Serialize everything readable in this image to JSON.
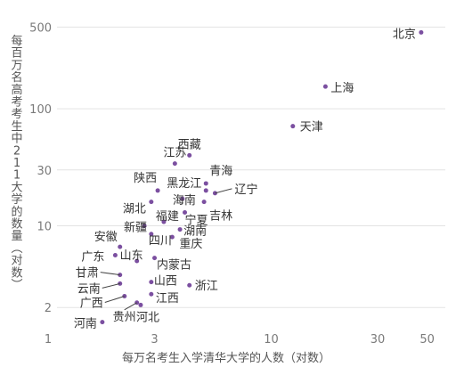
{
  "chart_data": {
    "type": "scatter",
    "title": "",
    "xlabel": "每万名考生入学清华大学的人数（对数）",
    "ylabel": "每百万名高考考生中211大学的数量（对数）",
    "x_scale": "log",
    "y_scale": "log",
    "xlim": [
      1,
      55
    ],
    "ylim": [
      1.25,
      600
    ],
    "x_ticks": [
      1,
      3,
      10,
      30,
      50
    ],
    "y_ticks": [
      2,
      10,
      30,
      100,
      500
    ],
    "grid": "horizontal",
    "marker_color": "#7b4fa0",
    "points": [
      {
        "name": "北京",
        "x": 47,
        "y": 450
      },
      {
        "name": "上海",
        "x": 17.5,
        "y": 155
      },
      {
        "name": "天津",
        "x": 12.5,
        "y": 71
      },
      {
        "name": "西藏",
        "x": 4.3,
        "y": 40
      },
      {
        "name": "江苏",
        "x": 3.7,
        "y": 34
      },
      {
        "name": "青海",
        "x": 5.1,
        "y": 23
      },
      {
        "name": "辽宁",
        "x": 5.6,
        "y": 19
      },
      {
        "name": "黑龙江",
        "x": 5.1,
        "y": 20
      },
      {
        "name": "吉林",
        "x": 5.0,
        "y": 16
      },
      {
        "name": "陕西",
        "x": 3.1,
        "y": 20
      },
      {
        "name": "海南",
        "x": 4.0,
        "y": 17
      },
      {
        "name": "湖北",
        "x": 2.9,
        "y": 16
      },
      {
        "name": "宁夏",
        "x": 4.1,
        "y": 13
      },
      {
        "name": "福建",
        "x": 3.3,
        "y": 10.8
      },
      {
        "name": "新疆",
        "x": 2.7,
        "y": 10
      },
      {
        "name": "湖南",
        "x": 3.9,
        "y": 9.3
      },
      {
        "name": "四川",
        "x": 2.9,
        "y": 8.5
      },
      {
        "name": "重庆",
        "x": 3.6,
        "y": 8.0
      },
      {
        "name": "安徽",
        "x": 2.1,
        "y": 6.6
      },
      {
        "name": "广东",
        "x": 2.0,
        "y": 5.6
      },
      {
        "name": "山东",
        "x": 2.5,
        "y": 5.0
      },
      {
        "name": "内蒙古",
        "x": 3.0,
        "y": 5.3
      },
      {
        "name": "甘肃",
        "x": 2.1,
        "y": 3.8
      },
      {
        "name": "云南",
        "x": 2.1,
        "y": 3.2
      },
      {
        "name": "山西",
        "x": 2.9,
        "y": 3.3
      },
      {
        "name": "浙江",
        "x": 4.3,
        "y": 3.1
      },
      {
        "name": "江西",
        "x": 2.9,
        "y": 2.6
      },
      {
        "name": "广西",
        "x": 2.2,
        "y": 2.5
      },
      {
        "name": "贵州",
        "x": 2.5,
        "y": 2.2
      },
      {
        "name": "河北",
        "x": 2.6,
        "y": 2.1
      },
      {
        "name": "河南",
        "x": 1.75,
        "y": 1.5
      }
    ]
  }
}
